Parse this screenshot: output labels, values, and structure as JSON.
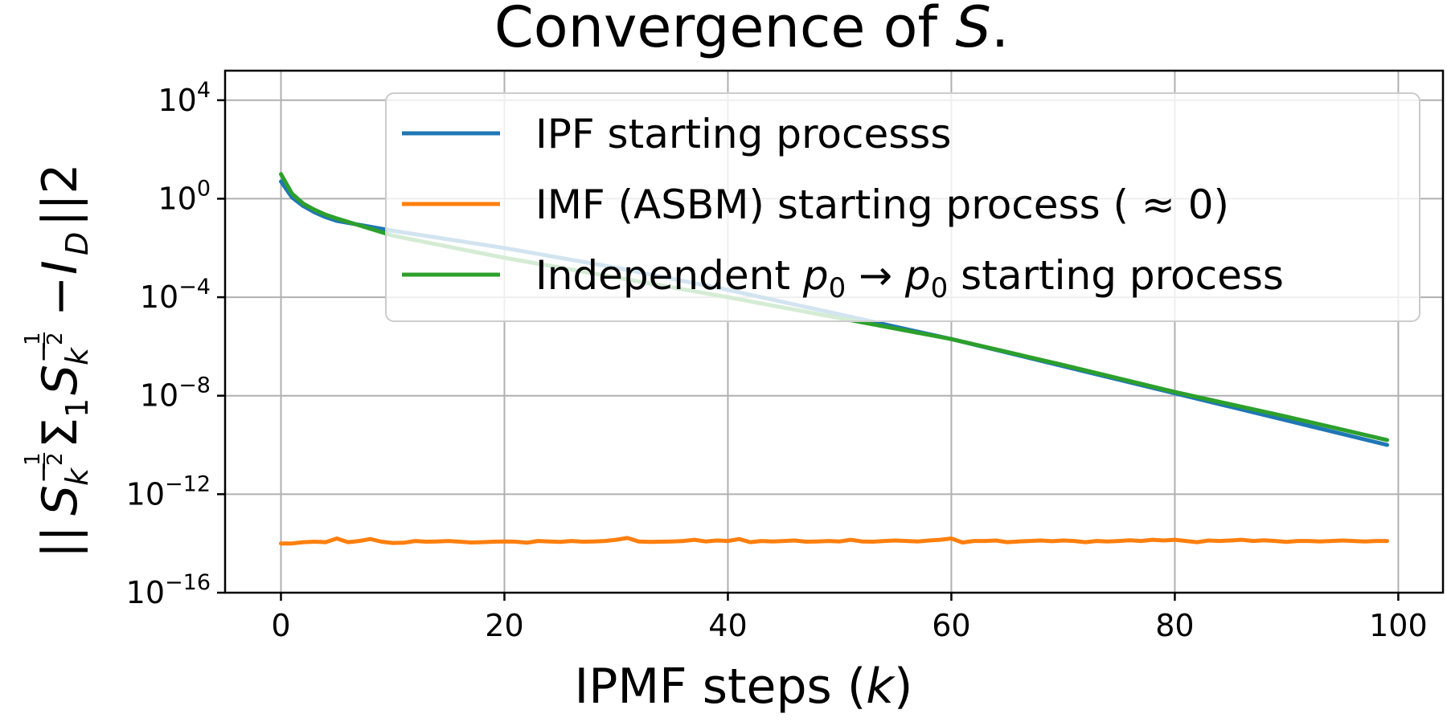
{
  "chart_data": {
    "type": "line",
    "title": {
      "prefix": "Convergence of ",
      "var": "S",
      "suffix": "."
    },
    "xlabel": {
      "prefix": "IPMF steps (",
      "var": "k",
      "suffix": ")"
    },
    "ylabel": "||S_k^{-1/2} Σ_1 S_k^{-1/2} − I_D||2",
    "ylabel_parts": {
      "bar_left": "||",
      "s": "S",
      "k": "k",
      "half": "1",
      "half_den": "2",
      "sigma": "Σ",
      "one": "1",
      "minus": "−",
      "i": "I",
      "d": "D",
      "bar_right": "||2"
    },
    "y_scale": "log",
    "xlim": [
      -5,
      104
    ],
    "ylim_log10": [
      -16,
      5.2
    ],
    "x_ticks": [
      0,
      20,
      40,
      60,
      80,
      100
    ],
    "x_tick_labels": [
      "0",
      "20",
      "40",
      "60",
      "80",
      "100"
    ],
    "y_tick_exponents": [
      4,
      0,
      -4,
      -8,
      -12,
      -16
    ],
    "y_tick_labels": [
      {
        "base": "10",
        "exp": "4"
      },
      {
        "base": "10",
        "exp": "0"
      },
      {
        "base": "10",
        "exp": "−4"
      },
      {
        "base": "10",
        "exp": "−8"
      },
      {
        "base": "10",
        "exp": "−12"
      },
      {
        "base": "10",
        "exp": "−16"
      }
    ],
    "grid": true,
    "legend_position": "top-right",
    "series": [
      {
        "name": "IPF starting processs",
        "color": "#1f77b4",
        "x": [
          0,
          1,
          2,
          3,
          4,
          5,
          10,
          20,
          30,
          40,
          50,
          60,
          70,
          80,
          90,
          99
        ],
        "y_log10": [
          0.7,
          0.05,
          -0.3,
          -0.55,
          -0.75,
          -0.9,
          -1.3,
          -2.0,
          -2.8,
          -3.7,
          -4.7,
          -5.7,
          -6.8,
          -7.9,
          -9.0,
          -10.0
        ]
      },
      {
        "name": "IMF (ASBM) starting process",
        "name_suffix": " ( ≈ 0)",
        "color": "#ff7f0e",
        "x": [
          0,
          1,
          2,
          3,
          4,
          5,
          6,
          7,
          8,
          9,
          10,
          11,
          12,
          13,
          14,
          15,
          16,
          17,
          18,
          19,
          20,
          21,
          22,
          23,
          24,
          25,
          26,
          27,
          28,
          29,
          30,
          31,
          32,
          33,
          34,
          35,
          36,
          37,
          38,
          39,
          40,
          41,
          42,
          43,
          44,
          45,
          46,
          47,
          48,
          49,
          50,
          51,
          52,
          53,
          54,
          55,
          56,
          57,
          58,
          59,
          60,
          61,
          62,
          63,
          64,
          65,
          66,
          67,
          68,
          69,
          70,
          71,
          72,
          73,
          74,
          75,
          76,
          77,
          78,
          79,
          80,
          81,
          82,
          83,
          84,
          85,
          86,
          87,
          88,
          89,
          90,
          91,
          92,
          93,
          94,
          95,
          96,
          97,
          98,
          99
        ],
        "y_log10": [
          -14.0,
          -14.0,
          -13.95,
          -13.93,
          -13.95,
          -13.8,
          -13.95,
          -13.9,
          -13.82,
          -13.93,
          -13.98,
          -13.97,
          -13.9,
          -13.93,
          -13.92,
          -13.9,
          -13.93,
          -13.96,
          -13.95,
          -13.93,
          -13.92,
          -13.93,
          -13.97,
          -13.9,
          -13.92,
          -13.94,
          -13.9,
          -13.93,
          -13.92,
          -13.9,
          -13.85,
          -13.78,
          -13.92,
          -13.94,
          -13.93,
          -13.92,
          -13.9,
          -13.85,
          -13.92,
          -13.88,
          -13.9,
          -13.82,
          -13.95,
          -13.9,
          -13.92,
          -13.9,
          -13.88,
          -13.93,
          -13.92,
          -13.9,
          -13.92,
          -13.85,
          -13.92,
          -13.93,
          -13.9,
          -13.88,
          -13.9,
          -13.92,
          -13.88,
          -13.85,
          -13.8,
          -13.96,
          -13.9,
          -13.9,
          -13.88,
          -13.95,
          -13.92,
          -13.9,
          -13.88,
          -13.91,
          -13.88,
          -13.9,
          -13.95,
          -13.9,
          -13.92,
          -13.9,
          -13.87,
          -13.9,
          -13.85,
          -13.88,
          -13.85,
          -13.9,
          -13.95,
          -13.88,
          -13.9,
          -13.88,
          -13.85,
          -13.9,
          -13.87,
          -13.9,
          -13.94,
          -13.9,
          -13.9,
          -13.92,
          -13.9,
          -13.88,
          -13.9,
          -13.92,
          -13.9,
          -13.9
        ]
      },
      {
        "name_prefix": "Independent ",
        "name_math": "p",
        "name_sub": "0",
        "name_arrow": " → ",
        "name_math2": "p",
        "name_sub2": "0",
        "name_suffix": " starting process",
        "color": "#2ca02c",
        "x": [
          0,
          1,
          2,
          3,
          4,
          5,
          10,
          20,
          30,
          40,
          50,
          60,
          70,
          80,
          90,
          99
        ],
        "y_log10": [
          1.0,
          0.2,
          -0.2,
          -0.45,
          -0.65,
          -0.8,
          -1.5,
          -2.4,
          -3.2,
          -4.0,
          -4.85,
          -5.7,
          -6.75,
          -7.85,
          -8.85,
          -9.8
        ]
      }
    ]
  }
}
